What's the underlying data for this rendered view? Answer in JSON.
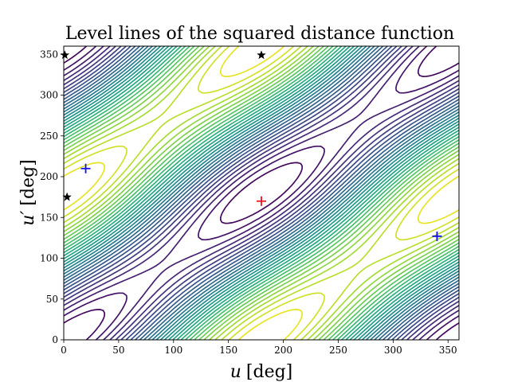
{
  "chart_data": {
    "type": "contour",
    "title": "Level lines of the squared distance function",
    "xlabel_var": "u",
    "xlabel_unit": "[deg]",
    "ylabel_var": "u′",
    "ylabel_unit": "[deg]",
    "xlim": [
      0,
      360
    ],
    "ylim": [
      0,
      360
    ],
    "xticks": [
      0,
      50,
      100,
      150,
      200,
      250,
      300,
      350
    ],
    "yticks": [
      0,
      50,
      100,
      150,
      200,
      250,
      300,
      350
    ],
    "grid": false,
    "colormap": "viridis",
    "n_levels": 30,
    "markers": [
      {
        "name": "maximum",
        "symbol": "plus",
        "color": "#e8101e",
        "x": 180,
        "y": 170
      },
      {
        "name": "saddle",
        "symbol": "plus",
        "color": "#1010e6",
        "x": 20,
        "y": 210
      },
      {
        "name": "saddle",
        "symbol": "plus",
        "color": "#1010e6",
        "x": 340,
        "y": 127
      },
      {
        "name": "minimum",
        "symbol": "star",
        "color": "#000000",
        "x": 1,
        "y": 349
      },
      {
        "name": "minimum",
        "symbol": "star",
        "color": "#000000",
        "x": 180,
        "y": 349
      },
      {
        "name": "minimum",
        "symbol": "star",
        "color": "#000000",
        "x": 3,
        "y": 175
      }
    ]
  }
}
